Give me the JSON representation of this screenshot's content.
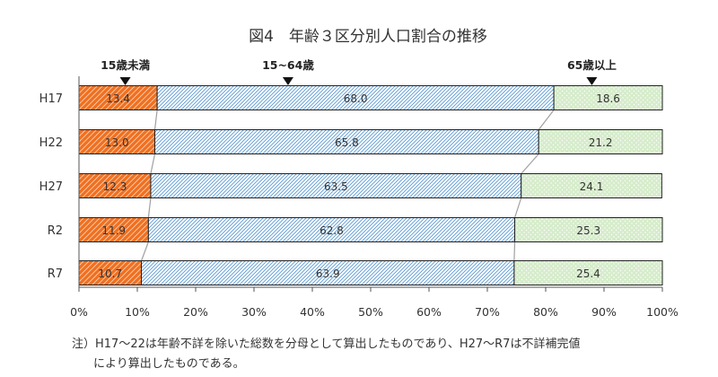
{
  "chart_data": {
    "type": "bar",
    "orientation": "horizontal",
    "stacked": "100%",
    "title": "図4　年齢３区分別人口割合の推移",
    "categories": [
      "H17",
      "H22",
      "H27",
      "R2",
      "R7"
    ],
    "series": [
      {
        "name": "15歳未満",
        "values": [
          13.4,
          13.0,
          12.3,
          11.9,
          10.7
        ],
        "color": "#f07020",
        "pattern": "hatch-orange"
      },
      {
        "name": "15~64歳",
        "values": [
          68.0,
          65.8,
          63.5,
          62.8,
          63.9
        ],
        "color": "#9dc3e6",
        "pattern": "hatch-blue"
      },
      {
        "name": "65歳以上",
        "values": [
          18.6,
          21.2,
          24.1,
          25.3,
          25.4
        ],
        "color": "#c5e0b4",
        "pattern": "dots-green"
      }
    ],
    "x_ticks": [
      "0%",
      "10%",
      "20%",
      "30%",
      "40%",
      "50%",
      "60%",
      "70%",
      "80%",
      "90%",
      "100%"
    ],
    "xlim": [
      0,
      100
    ],
    "grid": false,
    "legend": "top-markers"
  },
  "notes": [
    "注）H17～22は年齢不詳を除いた総数を分母として算出したものであり、H27～R7は不詳補完値",
    "により算出したものである。"
  ]
}
